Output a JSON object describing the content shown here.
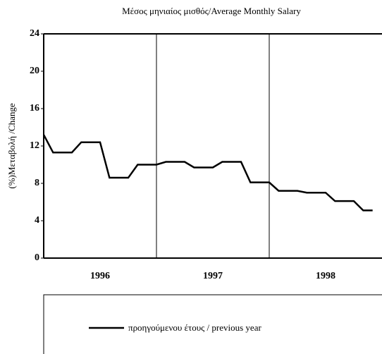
{
  "chart_data": {
    "type": "line",
    "title": "Μέσος μηνιαίος μισθός/Average Monthly Salary",
    "y_label": "(%)Μεταβολή /Change",
    "categories": [
      null,
      null,
      null,
      null,
      null,
      null,
      null,
      null,
      null,
      null,
      null,
      null,
      null,
      null,
      null,
      null,
      null,
      null,
      null,
      null,
      null,
      null,
      null,
      null,
      null,
      null,
      null,
      null,
      null,
      null,
      null,
      null,
      null,
      null,
      null,
      null
    ],
    "year_labels": [
      "1996",
      "1997",
      "1998"
    ],
    "series": [
      {
        "name": "προηγούμενου έτους / previous year",
        "color": "#000000",
        "values": [
          13.2,
          11.3,
          11.3,
          11.3,
          12.4,
          12.4,
          12.4,
          8.6,
          8.6,
          8.6,
          10.0,
          10.0,
          10.0,
          10.3,
          10.3,
          10.3,
          9.7,
          9.7,
          9.7,
          10.3,
          10.3,
          10.3,
          8.1,
          8.1,
          8.1,
          7.2,
          7.2,
          7.2,
          7.0,
          7.0,
          7.0,
          6.1,
          6.1,
          6.1,
          5.1,
          5.1
        ]
      }
    ],
    "ylim": [
      0,
      24
    ],
    "yticks": [
      0,
      4,
      8,
      12,
      16,
      20,
      24
    ]
  }
}
